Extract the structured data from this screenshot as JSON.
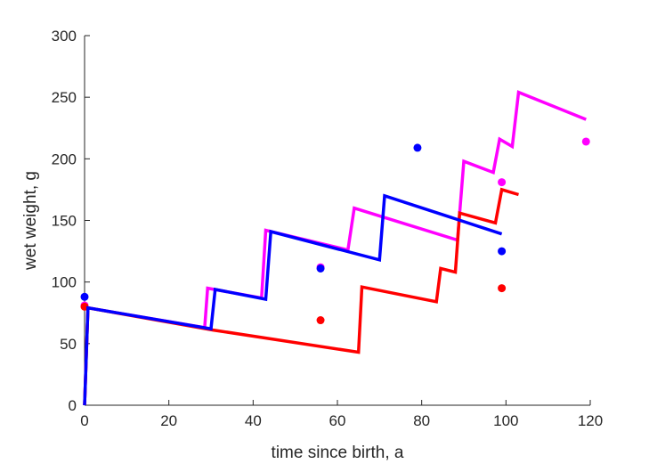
{
  "chart_data": {
    "type": "line",
    "xlabel": "time since birth, a",
    "ylabel": "wet weight, g",
    "xlim": [
      0,
      120
    ],
    "ylim": [
      0,
      300
    ],
    "xticks": [
      "0",
      "20",
      "40",
      "60",
      "80",
      "100",
      "120"
    ],
    "yticks": [
      "0",
      "50",
      "100",
      "150",
      "200",
      "250",
      "300"
    ],
    "grid": false,
    "legend": "none",
    "series": [
      {
        "color": "#ff00ff",
        "line": [
          [
            0,
            0
          ],
          [
            0.8,
            79
          ],
          [
            28.5,
            63
          ],
          [
            29.2,
            95
          ],
          [
            42,
            87
          ],
          [
            43,
            142
          ],
          [
            62.5,
            126
          ],
          [
            64,
            160
          ],
          [
            88.5,
            134
          ],
          [
            90,
            198
          ],
          [
            97,
            189
          ],
          [
            98.5,
            216
          ],
          [
            101.5,
            210
          ],
          [
            103,
            254
          ],
          [
            119,
            232
          ]
        ],
        "points": [
          [
            0,
            81
          ],
          [
            56,
            112
          ],
          [
            99,
            181
          ],
          [
            119,
            214
          ]
        ]
      },
      {
        "color": "#ff0000",
        "line": [
          [
            0,
            0
          ],
          [
            0.8,
            79
          ],
          [
            30.5,
            61
          ],
          [
            65,
            43
          ],
          [
            65.8,
            96
          ],
          [
            83.5,
            84
          ],
          [
            84.5,
            111
          ],
          [
            88,
            108
          ],
          [
            89,
            156
          ],
          [
            97.5,
            148
          ],
          [
            99,
            175
          ],
          [
            103,
            171
          ]
        ],
        "points": [
          [
            0,
            80
          ],
          [
            56,
            69
          ],
          [
            99,
            95
          ]
        ]
      },
      {
        "color": "#0000ff",
        "line": [
          [
            0,
            0
          ],
          [
            0.8,
            79
          ],
          [
            30,
            62
          ],
          [
            31,
            94
          ],
          [
            43,
            86
          ],
          [
            44.2,
            141
          ],
          [
            70,
            118
          ],
          [
            71.2,
            170
          ],
          [
            99,
            139
          ]
        ],
        "points": [
          [
            0,
            88
          ],
          [
            56,
            111
          ],
          [
            79,
            209
          ],
          [
            99,
            125
          ]
        ]
      }
    ]
  }
}
